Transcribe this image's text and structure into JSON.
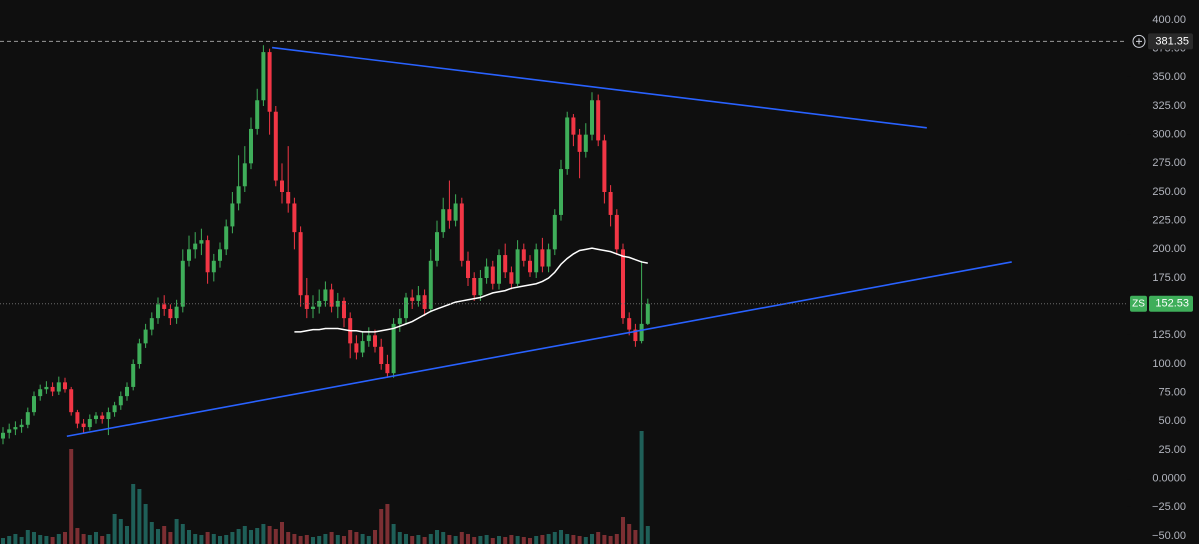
{
  "chart_data": {
    "type": "candlestick",
    "symbol": "ZS",
    "up_color": "#3fae5a",
    "down_color": "#f23645",
    "volume_up_color": "#1f5f58",
    "volume_down_color": "#7c2f33",
    "ylim": [
      -50,
      400
    ],
    "yticks": [
      {
        "value": 400,
        "label": "400.00"
      },
      {
        "value": 375,
        "label": "375.00"
      },
      {
        "value": 350,
        "label": "350.00"
      },
      {
        "value": 325,
        "label": "325.00"
      },
      {
        "value": 300,
        "label": "300.00"
      },
      {
        "value": 275,
        "label": "275.00"
      },
      {
        "value": 250,
        "label": "250.00"
      },
      {
        "value": 225,
        "label": "225.00"
      },
      {
        "value": 200,
        "label": "200.00"
      },
      {
        "value": 175,
        "label": "175.00"
      },
      {
        "value": 150,
        "label": "150.00"
      },
      {
        "value": 125,
        "label": "125.00"
      },
      {
        "value": 100,
        "label": "100.00"
      },
      {
        "value": 75,
        "label": "75.00"
      },
      {
        "value": 50,
        "label": "50.00"
      },
      {
        "value": 25,
        "label": "25.00"
      },
      {
        "value": 0,
        "label": "0.0000"
      },
      {
        "value": -25,
        "label": "−25.00"
      },
      {
        "value": -50,
        "label": "−50.00"
      }
    ],
    "open": [
      35,
      40,
      43,
      45,
      47,
      58,
      72,
      78,
      80,
      76,
      84,
      78,
      58,
      48,
      45,
      52,
      55,
      52,
      58,
      64,
      72,
      80,
      100,
      118,
      130,
      140,
      152,
      148,
      140,
      150,
      190,
      200,
      205,
      208,
      180,
      190,
      200,
      220,
      240,
      255,
      275,
      305,
      330,
      372,
      320,
      260,
      250,
      240,
      215,
      160,
      148,
      150,
      155,
      165,
      150,
      155,
      140,
      118,
      110,
      120,
      125,
      115,
      100,
      92,
      135,
      140,
      158,
      155,
      160,
      148,
      190,
      215,
      235,
      225,
      240,
      190,
      175,
      160,
      175,
      185,
      170,
      195,
      180,
      170,
      200,
      190,
      180,
      200,
      185,
      200,
      230,
      270,
      315,
      300,
      285,
      300,
      330,
      295,
      250,
      230,
      200,
      140,
      130,
      120,
      135
    ],
    "high": [
      45,
      48,
      50,
      52,
      62,
      76,
      82,
      85,
      84,
      89,
      88,
      80,
      60,
      52,
      56,
      58,
      58,
      62,
      67,
      76,
      84,
      104,
      122,
      135,
      145,
      158,
      160,
      152,
      156,
      200,
      212,
      215,
      218,
      212,
      196,
      206,
      226,
      250,
      282,
      290,
      315,
      340,
      378,
      375,
      325,
      275,
      290,
      245,
      220,
      175,
      160,
      165,
      172,
      170,
      162,
      158,
      145,
      125,
      128,
      132,
      130,
      122,
      108,
      140,
      148,
      162,
      165,
      168,
      165,
      200,
      225,
      245,
      260,
      248,
      245,
      198,
      180,
      182,
      192,
      190,
      200,
      205,
      185,
      208,
      205,
      195,
      205,
      210,
      205,
      235,
      278,
      320,
      318,
      305,
      310,
      337,
      335,
      300,
      256,
      235,
      205,
      145,
      135,
      190,
      157
    ],
    "low": [
      30,
      35,
      38,
      40,
      44,
      55,
      68,
      74,
      72,
      73,
      75,
      55,
      44,
      40,
      42,
      48,
      48,
      38,
      54,
      60,
      68,
      77,
      96,
      114,
      125,
      135,
      142,
      134,
      135,
      145,
      185,
      192,
      195,
      170,
      172,
      184,
      195,
      214,
      234,
      250,
      270,
      300,
      325,
      300,
      255,
      240,
      232,
      200,
      150,
      140,
      140,
      144,
      150,
      145,
      140,
      132,
      105,
      104,
      106,
      115,
      110,
      95,
      88,
      88,
      128,
      135,
      148,
      150,
      142,
      145,
      185,
      210,
      218,
      220,
      185,
      168,
      155,
      155,
      170,
      165,
      165,
      175,
      165,
      168,
      185,
      176,
      175,
      180,
      180,
      195,
      225,
      265,
      290,
      262,
      280,
      295,
      290,
      240,
      220,
      195,
      135,
      125,
      115,
      118,
      134
    ],
    "close": [
      40,
      43,
      45,
      47,
      58,
      72,
      78,
      80,
      76,
      84,
      78,
      58,
      48,
      45,
      52,
      55,
      52,
      58,
      64,
      72,
      80,
      100,
      118,
      130,
      140,
      152,
      148,
      140,
      150,
      190,
      200,
      205,
      208,
      180,
      190,
      200,
      220,
      240,
      255,
      275,
      305,
      330,
      372,
      320,
      260,
      250,
      240,
      215,
      160,
      148,
      150,
      155,
      165,
      150,
      155,
      140,
      118,
      110,
      120,
      125,
      115,
      100,
      92,
      135,
      140,
      158,
      155,
      160,
      148,
      190,
      215,
      235,
      225,
      240,
      190,
      175,
      160,
      175,
      185,
      170,
      195,
      180,
      170,
      200,
      190,
      180,
      200,
      185,
      200,
      230,
      270,
      315,
      300,
      285,
      300,
      330,
      295,
      250,
      230,
      200,
      140,
      130,
      120,
      135,
      152.53
    ],
    "volume": [
      6,
      8,
      10,
      7,
      14,
      12,
      9,
      8,
      7,
      10,
      12,
      95,
      16,
      10,
      9,
      12,
      8,
      10,
      30,
      25,
      18,
      60,
      55,
      40,
      22,
      15,
      18,
      12,
      25,
      20,
      14,
      10,
      9,
      12,
      10,
      8,
      9,
      12,
      15,
      18,
      14,
      16,
      20,
      18,
      15,
      22,
      12,
      10,
      8,
      9,
      7,
      8,
      10,
      12,
      9,
      8,
      14,
      12,
      10,
      8,
      14,
      35,
      40,
      20,
      12,
      10,
      8,
      9,
      7,
      10,
      14,
      12,
      9,
      8,
      12,
      10,
      7,
      8,
      9,
      6,
      8,
      7,
      9,
      8,
      7,
      6,
      8,
      9,
      10,
      12,
      14,
      10,
      9,
      8,
      7,
      10,
      12,
      9,
      8,
      10,
      27,
      20,
      14,
      113,
      18
    ],
    "ma": [
      null,
      null,
      null,
      null,
      null,
      null,
      null,
      null,
      null,
      null,
      null,
      null,
      null,
      null,
      null,
      null,
      null,
      null,
      null,
      null,
      null,
      null,
      null,
      null,
      null,
      null,
      null,
      null,
      null,
      null,
      null,
      null,
      null,
      null,
      null,
      null,
      null,
      null,
      null,
      null,
      null,
      null,
      null,
      null,
      null,
      null,
      null,
      128,
      128,
      129,
      130,
      130,
      131,
      131,
      131,
      130,
      129,
      129,
      128,
      128,
      128,
      129,
      130,
      131,
      133,
      135,
      137,
      140,
      143,
      146,
      148,
      150,
      152,
      154,
      155,
      156,
      157,
      158,
      160,
      162,
      163,
      164,
      166,
      167,
      168,
      169,
      170,
      172,
      175,
      180,
      187,
      192,
      196,
      199,
      200,
      201,
      200,
      199,
      198,
      196,
      194,
      193,
      191,
      189,
      188
    ],
    "ma_color": "#ffffff",
    "trendlines": [
      {
        "color": "#2962ff",
        "x": [
          43.4,
          149
        ],
        "y": [
          376,
          306
        ]
      },
      {
        "color": "#2962ff",
        "x": [
          10.3,
          162.7
        ],
        "y": [
          37,
          189
        ]
      }
    ],
    "high_line": 381.35,
    "last_price": 152.53
  }
}
